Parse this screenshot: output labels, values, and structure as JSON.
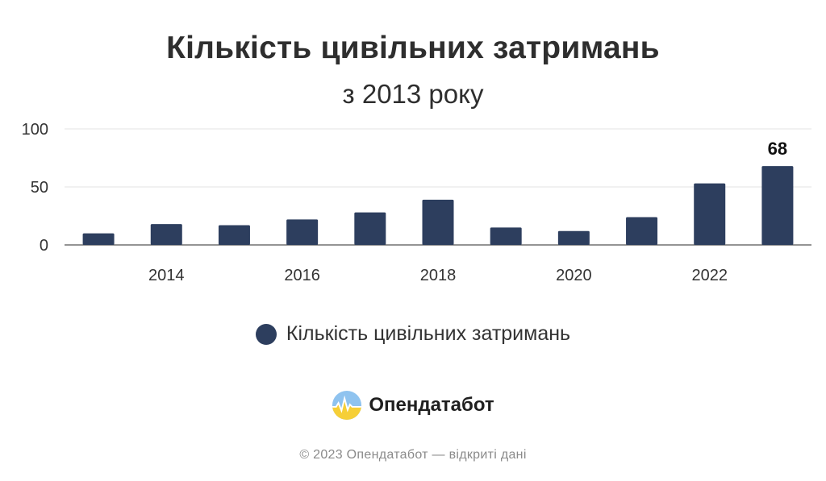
{
  "chart_data": {
    "type": "bar",
    "title": "Кількість цивільних затримань",
    "subtitle": "з 2013 року",
    "categories": [
      "2013",
      "2014",
      "2015",
      "2016",
      "2017",
      "2018",
      "2019",
      "2020",
      "2021",
      "2022",
      "2023"
    ],
    "series": [
      {
        "name": "Кількість цивільних затримань",
        "values": [
          10,
          18,
          17,
          22,
          28,
          39,
          15,
          12,
          24,
          53,
          68
        ],
        "color": "#2d3e5e"
      }
    ],
    "x_tick_labels": [
      "2014",
      "2016",
      "2018",
      "2020",
      "2022"
    ],
    "y_ticks": [
      0,
      50,
      100
    ],
    "ylim": [
      0,
      100
    ],
    "data_labels": [
      {
        "category": "2023",
        "text": "68"
      }
    ],
    "grid": true,
    "legend_position": "bottom"
  },
  "branding": {
    "name": "Опендатабот",
    "footer": "© 2023 Опендатабот — відкриті дані",
    "logo_icon": "sun-over-waves-icon"
  }
}
